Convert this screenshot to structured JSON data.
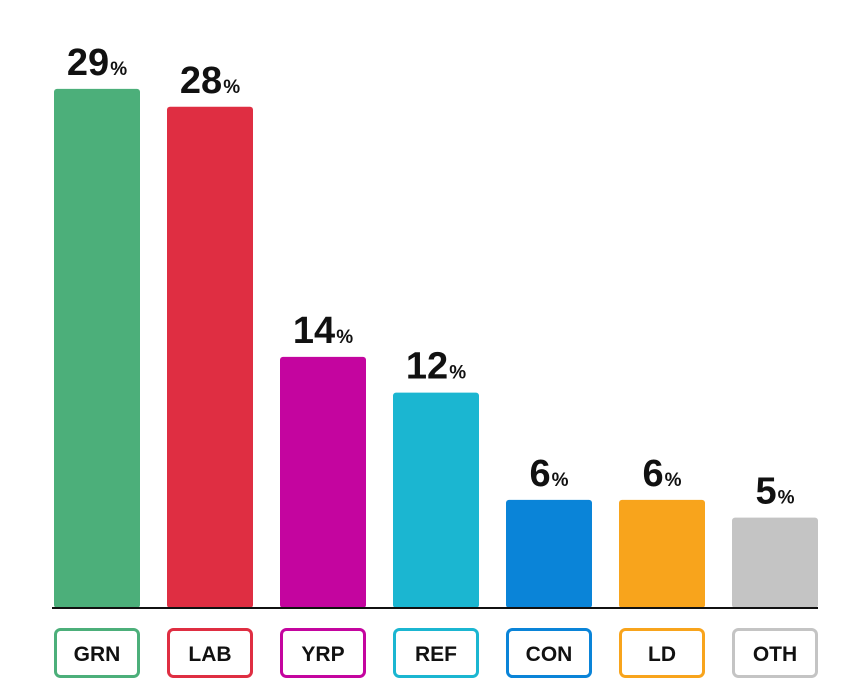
{
  "chart_data": {
    "type": "bar",
    "categories": [
      "GRN",
      "LAB",
      "YRP",
      "REF",
      "CON",
      "LD",
      "OTH"
    ],
    "values": [
      29,
      28,
      14,
      12,
      6,
      6,
      5
    ],
    "value_suffix": "%",
    "colors": [
      "#4caf7a",
      "#df2e42",
      "#c4059f",
      "#1bb6d1",
      "#0a84d8",
      "#f8a41c",
      "#c4c4c4"
    ],
    "value_labels": [
      "29",
      "28",
      "14",
      "12",
      "6",
      "6",
      "5"
    ],
    "ylim": [
      0,
      29.5
    ],
    "title": "",
    "xlabel": "",
    "ylabel": "",
    "grid": false,
    "legend": "none"
  }
}
